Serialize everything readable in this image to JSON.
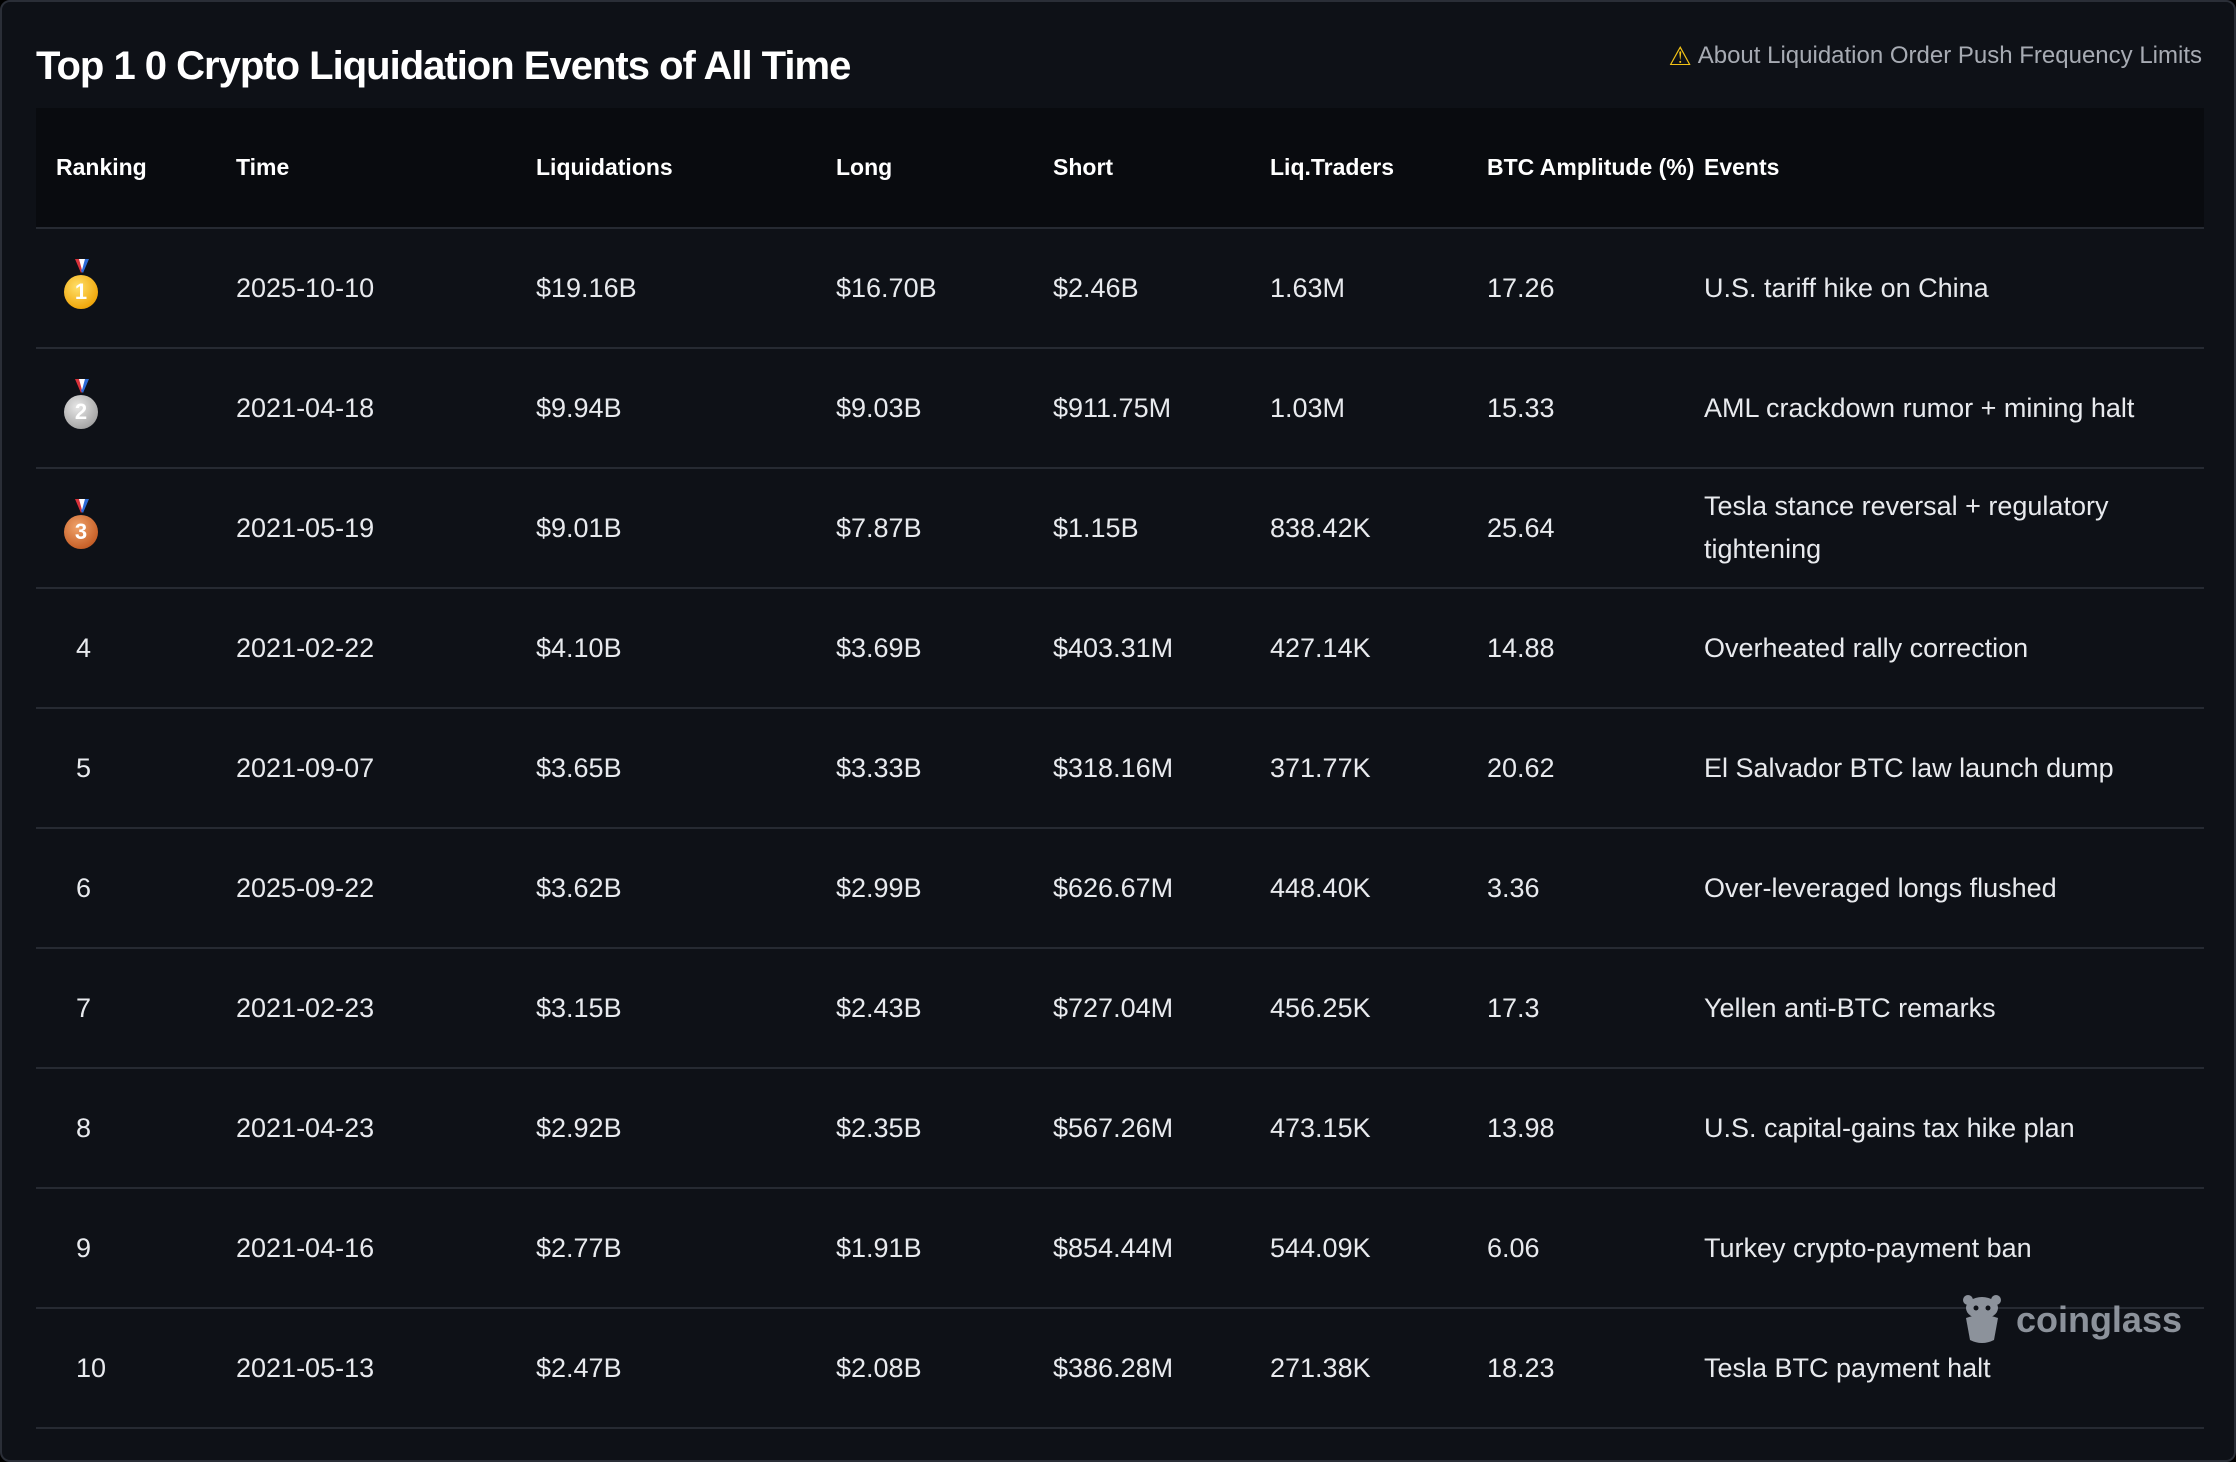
{
  "title": "Top 1 0 Crypto Liquidation Events of All Time",
  "notice": {
    "icon": "warning-icon",
    "text": "About Liquidation Order Push Frequency Limits"
  },
  "table": {
    "headers": [
      "Ranking",
      "Time",
      "Liquidations",
      "Long",
      "Short",
      "Liq.Traders",
      "BTC Amplitude (%)",
      "Events"
    ],
    "rows": [
      {
        "rank": "1",
        "medal": "gold-medal-icon",
        "time": "2025-10-10",
        "liq": "$19.16B",
        "long": "$16.70B",
        "short": "$2.46B",
        "traders": "1.63M",
        "amp": "17.26",
        "event": "U.S. tariff hike on China"
      },
      {
        "rank": "2",
        "medal": "silver-medal-icon",
        "time": "2021-04-18",
        "liq": "$9.94B",
        "long": "$9.03B",
        "short": "$911.75M",
        "traders": "1.03M",
        "amp": "15.33",
        "event": "AML crackdown rumor + mining halt"
      },
      {
        "rank": "3",
        "medal": "bronze-medal-icon",
        "time": "2021-05-19",
        "liq": "$9.01B",
        "long": "$7.87B",
        "short": "$1.15B",
        "traders": "838.42K",
        "amp": "25.64",
        "event": "Tesla stance reversal + regulatory tightening"
      },
      {
        "rank": "4",
        "time": "2021-02-22",
        "liq": "$4.10B",
        "long": "$3.69B",
        "short": "$403.31M",
        "traders": "427.14K",
        "amp": "14.88",
        "event": "Overheated rally correction"
      },
      {
        "rank": "5",
        "time": "2021-09-07",
        "liq": "$3.65B",
        "long": "$3.33B",
        "short": "$318.16M",
        "traders": "371.77K",
        "amp": "20.62",
        "event": "El Salvador BTC law launch dump"
      },
      {
        "rank": "6",
        "time": "2025-09-22",
        "liq": "$3.62B",
        "long": "$2.99B",
        "short": "$626.67M",
        "traders": "448.40K",
        "amp": "3.36",
        "event": "Over-leveraged longs flushed"
      },
      {
        "rank": "7",
        "time": "2021-02-23",
        "liq": "$3.15B",
        "long": "$2.43B",
        "short": "$727.04M",
        "traders": "456.25K",
        "amp": "17.3",
        "event": "Yellen anti-BTC remarks"
      },
      {
        "rank": "8",
        "time": "2021-04-23",
        "liq": "$2.92B",
        "long": "$2.35B",
        "short": "$567.26M",
        "traders": "473.15K",
        "amp": "13.98",
        "event": "U.S. capital-gains tax hike plan"
      },
      {
        "rank": "9",
        "time": "2021-04-16",
        "liq": "$2.77B",
        "long": "$1.91B",
        "short": "$854.44M",
        "traders": "544.09K",
        "amp": "6.06",
        "event": "Turkey crypto-payment ban"
      },
      {
        "rank": "10",
        "time": "2021-05-13",
        "liq": "$2.47B",
        "long": "$2.08B",
        "short": "$386.28M",
        "traders": "271.38K",
        "amp": "18.23",
        "event": "Tesla BTC payment halt"
      }
    ]
  },
  "watermark": {
    "icon": "coinglass-logo-icon",
    "text": "coinglass"
  }
}
